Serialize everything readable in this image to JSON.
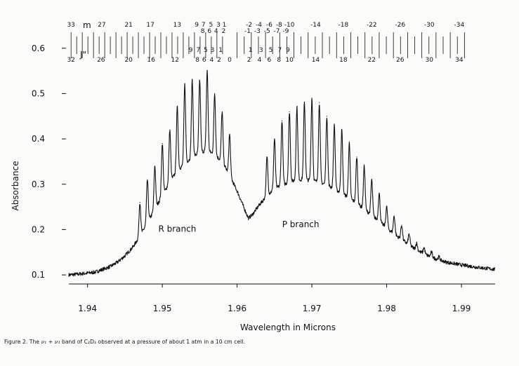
{
  "chart_data": {
    "type": "line",
    "title": "",
    "xlabel": "Wavelength in Microns",
    "ylabel": "Absorbance",
    "xlim": [
      1.9375,
      1.9945
    ],
    "ylim": [
      0.08,
      0.66
    ],
    "xticks": [
      1.94,
      1.95,
      1.96,
      1.97,
      1.98,
      1.99
    ],
    "xtick_labels": [
      "1.94",
      "1.95",
      "1.96",
      "1.97",
      "1.98",
      "1.99"
    ],
    "yticks": [
      0.1,
      0.2,
      0.3,
      0.4,
      0.5,
      0.6
    ],
    "ytick_labels": [
      "0.1",
      "0.2",
      "0.3",
      "0.4",
      "0.5",
      "0.6"
    ],
    "grid": false,
    "line_color": "#111111",
    "series": [
      {
        "x": [
          1.9375,
          1.939,
          1.941,
          1.943,
          1.944,
          1.945,
          1.946,
          1.947,
          1.948,
          1.949,
          1.95,
          1.951,
          1.952,
          1.953,
          1.954,
          1.955,
          1.956,
          1.957,
          1.958,
          1.959,
          1.96,
          1.961,
          1.9615,
          1.962,
          1.963,
          1.964,
          1.965,
          1.966,
          1.967,
          1.968,
          1.969,
          1.97,
          1.971,
          1.972,
          1.973,
          1.974,
          1.975,
          1.976,
          1.977,
          1.978,
          1.979,
          1.98,
          1.981,
          1.982,
          1.983,
          1.984,
          1.985,
          1.986,
          1.987,
          1.988,
          1.99,
          1.992,
          1.9945
        ],
        "y": [
          0.1,
          0.102,
          0.106,
          0.118,
          0.128,
          0.142,
          0.16,
          0.185,
          0.215,
          0.245,
          0.275,
          0.305,
          0.33,
          0.345,
          0.36,
          0.37,
          0.375,
          0.365,
          0.35,
          0.32,
          0.285,
          0.245,
          0.225,
          0.232,
          0.255,
          0.275,
          0.29,
          0.298,
          0.305,
          0.31,
          0.31,
          0.308,
          0.305,
          0.298,
          0.29,
          0.28,
          0.27,
          0.258,
          0.245,
          0.232,
          0.218,
          0.204,
          0.19,
          0.178,
          0.166,
          0.155,
          0.146,
          0.139,
          0.133,
          0.128,
          0.122,
          0.117,
          0.112
        ]
      }
    ],
    "peaks": {
      "x": [
        1.947,
        1.948,
        1.949,
        1.95,
        1.951,
        1.952,
        1.953,
        1.954,
        1.955,
        1.956,
        1.957,
        1.958,
        1.959,
        1.964,
        1.965,
        1.966,
        1.967,
        1.968,
        1.969,
        1.97,
        1.971,
        1.972,
        1.973,
        1.974,
        1.975,
        1.976,
        1.977,
        1.978,
        1.979,
        1.98,
        1.981,
        1.982,
        1.983,
        1.984,
        1.985,
        1.986,
        1.987
      ],
      "y": [
        0.26,
        0.31,
        0.34,
        0.39,
        0.42,
        0.47,
        0.52,
        0.53,
        0.53,
        0.55,
        0.5,
        0.46,
        0.41,
        0.36,
        0.4,
        0.44,
        0.46,
        0.47,
        0.48,
        0.49,
        0.48,
        0.45,
        0.43,
        0.42,
        0.39,
        0.36,
        0.34,
        0.31,
        0.28,
        0.25,
        0.23,
        0.21,
        0.19,
        0.17,
        0.16,
        0.15,
        0.14
      ]
    },
    "annotations": [
      {
        "text": "R branch",
        "x": 1.952,
        "y": 0.195
      },
      {
        "text": "P branch",
        "x": 1.9685,
        "y": 0.205
      }
    ],
    "assignment_rows": [
      {
        "label": "m",
        "numbers": [
          {
            "text": "33",
            "x": 1.9378
          },
          {
            "text": "27",
            "x": 1.9419
          },
          {
            "text": "21",
            "x": 1.9455
          },
          {
            "text": "17",
            "x": 1.9484
          },
          {
            "text": "13",
            "x": 1.952
          },
          {
            "text": "9",
            "x": 1.9546
          },
          {
            "text": "7",
            "x": 1.9555
          },
          {
            "text": "5",
            "x": 1.9565
          },
          {
            "text": "3",
            "x": 1.9575
          },
          {
            "text": "1",
            "x": 1.9583
          },
          {
            "text": "-2",
            "x": 1.9616
          },
          {
            "text": "-4",
            "x": 1.9629
          },
          {
            "text": "-6",
            "x": 1.9643
          },
          {
            "text": "-8",
            "x": 1.9656
          },
          {
            "text": "-10",
            "x": 1.967
          },
          {
            "text": "-14",
            "x": 1.9705
          },
          {
            "text": "-18",
            "x": 1.9742
          },
          {
            "text": "-22",
            "x": 1.978
          },
          {
            "text": "-26",
            "x": 1.9818
          },
          {
            "text": "-30",
            "x": 1.9857
          },
          {
            "text": "-34",
            "x": 1.9897
          }
        ]
      },
      {
        "label": "",
        "numbers": [
          {
            "text": "8",
            "x": 1.9554
          },
          {
            "text": "6",
            "x": 1.9563
          },
          {
            "text": "4",
            "x": 1.9572
          },
          {
            "text": "2",
            "x": 1.9582
          },
          {
            "text": "-1",
            "x": 1.9614
          },
          {
            "text": "-3",
            "x": 1.9627
          },
          {
            "text": "-5",
            "x": 1.964
          },
          {
            "text": "-7",
            "x": 1.9653
          },
          {
            "text": "-9",
            "x": 1.9665
          }
        ]
      },
      {
        "label": "",
        "numbers": [
          {
            "text": "9",
            "x": 1.9538
          },
          {
            "text": "7",
            "x": 1.9548
          },
          {
            "text": "5",
            "x": 1.9558
          },
          {
            "text": "3",
            "x": 1.9567
          },
          {
            "text": "1",
            "x": 1.9578
          },
          {
            "text": "1",
            "x": 1.9618
          },
          {
            "text": "3",
            "x": 1.9632
          },
          {
            "text": "5",
            "x": 1.9645
          },
          {
            "text": "7",
            "x": 1.9657
          },
          {
            "text": "9",
            "x": 1.9668
          }
        ]
      },
      {
        "label": "J\"",
        "numbers": [
          {
            "text": "32",
            "x": 1.9378
          },
          {
            "text": "26",
            "x": 1.9418
          },
          {
            "text": "20",
            "x": 1.9455
          },
          {
            "text": "16",
            "x": 1.9485
          },
          {
            "text": "12",
            "x": 1.9517
          },
          {
            "text": "8",
            "x": 1.9547
          },
          {
            "text": "6",
            "x": 1.9556
          },
          {
            "text": "4",
            "x": 1.9566
          },
          {
            "text": "2",
            "x": 1.9576
          },
          {
            "text": "0",
            "x": 1.959
          },
          {
            "text": "2",
            "x": 1.9616
          },
          {
            "text": "4",
            "x": 1.963
          },
          {
            "text": "6",
            "x": 1.9643
          },
          {
            "text": "8",
            "x": 1.9656
          },
          {
            "text": "10",
            "x": 1.967
          },
          {
            "text": "14",
            "x": 1.9705
          },
          {
            "text": "18",
            "x": 1.9742
          },
          {
            "text": "22",
            "x": 1.978
          },
          {
            "text": "26",
            "x": 1.9818
          },
          {
            "text": "30",
            "x": 1.9857
          },
          {
            "text": "34",
            "x": 1.9897
          }
        ]
      }
    ]
  },
  "caption": {
    "prefix": "Figure 2.   The ",
    "symbol1": "ν₁",
    "middle1": " + ",
    "symbol2": "ν₃",
    "suffix": " band of C₂D₂ observed at a pressure of about 1 atm in a 10 cm cell."
  }
}
